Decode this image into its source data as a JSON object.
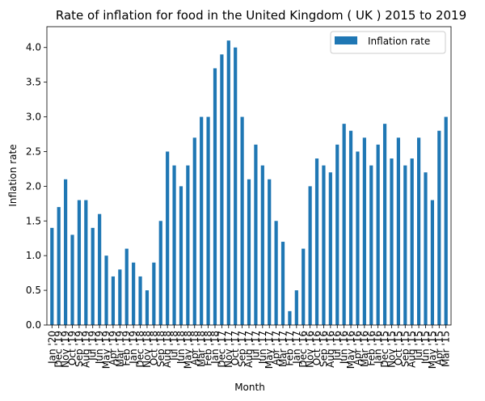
{
  "chart_data": {
    "type": "bar",
    "title": "Rate of inflation for food in the United Kingdom ( UK ) 2015 to 2019",
    "xlabel": "Month",
    "ylabel": "Inflation rate",
    "ylim": [
      0,
      4.3
    ],
    "yticks": [
      "0.0",
      "0.5",
      "1.0",
      "1.5",
      "2.0",
      "2.5",
      "3.0",
      "3.5",
      "4.0"
    ],
    "grid": false,
    "legend_position": "top-right",
    "bar_color": "#1f77b4",
    "categories": [
      "Jan '20",
      "Dec '19",
      "Nov '19",
      "Oct '19",
      "Sep '19",
      "Aug '19",
      "Jul '19",
      "Jun '19",
      "May '19",
      "Apr '19",
      "Mar '19",
      "Feb '19",
      "Jan '19",
      "Dec '18",
      "Nov '18",
      "Oct '18",
      "Sep '18",
      "Aug '18",
      "Jul '18",
      "Jun '18",
      "May '18",
      "Apr '18",
      "Mar '18",
      "Feb '18",
      "Jan '18",
      "Dec '17",
      "Nov '17",
      "Oct '17",
      "Sep '17",
      "Aug '17",
      "Jul '17",
      "Jun '17",
      "May '17",
      "Apr '17",
      "Mar '17",
      "Feb '17",
      "Jan '17",
      "Dec '16",
      "Nov '16",
      "Oct '16",
      "Sep '16",
      "Aug '16",
      "Jul '16",
      "Jun '16",
      "May '16",
      "Apr '16",
      "Mar '16",
      "Feb '16",
      "Jan '16",
      "Dec '15",
      "Nov '15",
      "Oct '15",
      "Sep '15",
      "Aug '15",
      "Jul '15",
      "Jun '15",
      "May '15",
      "Apr '15",
      "Mar '15"
    ],
    "series": [
      {
        "name": "Inflation rate",
        "values": [
          1.4,
          1.7,
          2.1,
          1.3,
          1.8,
          1.8,
          1.4,
          1.6,
          1.0,
          0.7,
          0.8,
          1.1,
          0.9,
          0.7,
          0.5,
          0.9,
          1.5,
          2.5,
          2.3,
          2.0,
          2.3,
          2.7,
          3.0,
          3.0,
          3.7,
          3.9,
          4.1,
          4.0,
          3.0,
          2.1,
          2.6,
          2.3,
          2.1,
          1.5,
          1.2,
          0.2,
          0.5,
          1.1,
          2.0,
          2.4,
          2.3,
          2.2,
          2.6,
          2.9,
          2.8,
          2.5,
          2.7,
          2.3,
          2.6,
          2.9,
          2.4,
          2.7,
          2.3,
          2.4,
          2.7,
          2.2,
          1.8,
          2.8,
          3.0
        ]
      }
    ]
  }
}
